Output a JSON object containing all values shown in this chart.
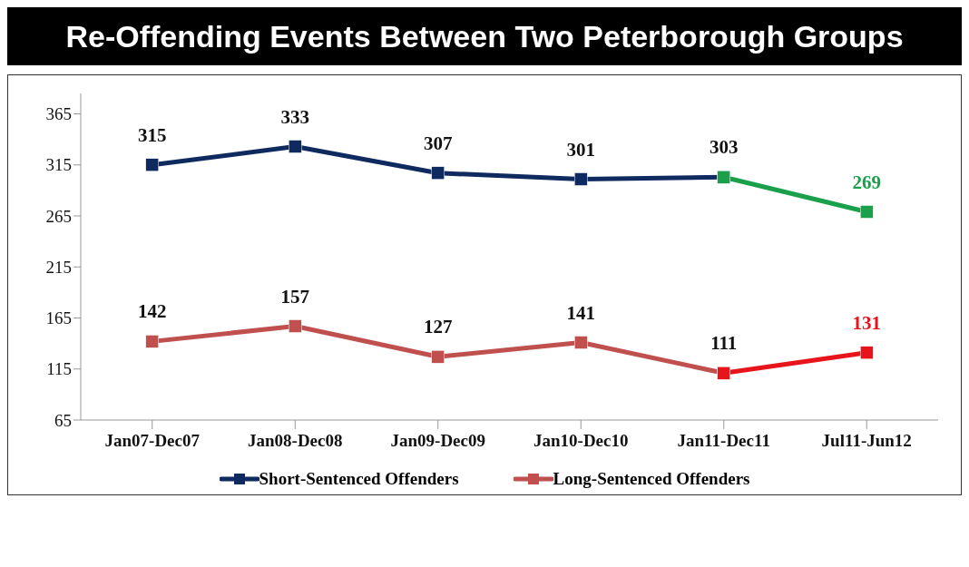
{
  "chart_data": {
    "type": "line",
    "title": "Re-Offending Events Between Two Peterborough Groups",
    "categories": [
      "Jan07-Dec07",
      "Jan08-Dec08",
      "Jan09-Dec09",
      "Jan10-Dec10",
      "Jan11-Dec11",
      "Jul11-Jun12"
    ],
    "series": [
      {
        "name": "Short-Sentenced Offenders",
        "color": "#0f2a5e",
        "marker": "square",
        "values": [
          315,
          333,
          307,
          301,
          303,
          null
        ],
        "value_labels": [
          "315",
          "333",
          "307",
          "301",
          "303",
          null
        ]
      },
      {
        "color": "#1aa04a",
        "marker": "square",
        "values": [
          null,
          null,
          null,
          null,
          303,
          269
        ],
        "value_labels": [
          null,
          null,
          null,
          null,
          null,
          "269"
        ]
      },
      {
        "name": "Long-Sentenced Offenders",
        "color": "#c0504d",
        "marker": "square",
        "values": [
          142,
          157,
          127,
          141,
          111,
          null
        ],
        "value_labels": [
          "142",
          "157",
          "127",
          "141",
          "111",
          null
        ]
      },
      {
        "color": "#e8141b",
        "marker": "square",
        "values": [
          null,
          null,
          null,
          null,
          111,
          131
        ],
        "value_labels": [
          null,
          null,
          null,
          null,
          null,
          "131"
        ]
      }
    ],
    "ylim": [
      65,
      385
    ],
    "yticks": [
      65,
      115,
      165,
      215,
      265,
      315,
      365
    ],
    "grid": false,
    "legend": "bottom"
  }
}
